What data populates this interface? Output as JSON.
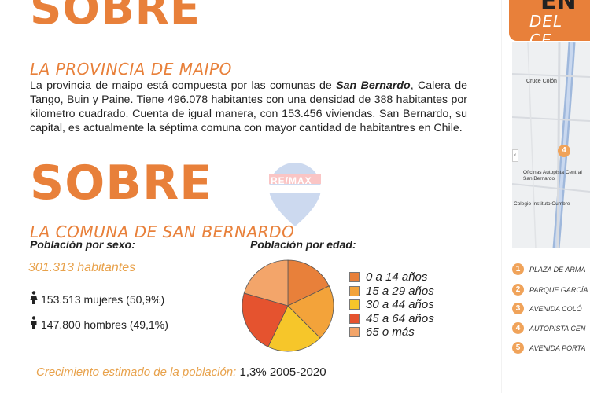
{
  "top": {
    "heading": "SOBRE",
    "subtitle": "LA PROVINCIA DE MAIPO",
    "p1": "La provincia de maipo está compuesta por las comunas de ",
    "p1_bold": "San Bernardo",
    "p2": ", Calera de Tango, Buin y Paine. Tiene 496.078 habitantes con una densidad de 388 habitantes por kilometro cuadrado. Cuenta de igual manera, con 153.456 viviendas. San Bernardo, su capital, es actualmente la séptima comuna con mayor cantidad de habitantres en Chile."
  },
  "second": {
    "heading": "SOBRE",
    "subtitle": "LA COMUNA DE SAN BERNARDO"
  },
  "sexo": {
    "header": "Población por sexo:",
    "total": "301.313 habitantes",
    "mujeres": "153.513 mujeres (50,9%)",
    "hombres": "147.800 hombres (49,1%)"
  },
  "edad": {
    "header": "Población por edad:"
  },
  "chart_data": {
    "type": "pie",
    "title": "",
    "categories": [
      "0 a 14 años",
      "15 a 29 años",
      "30 a 44 años",
      "45 a 64 años",
      "65 o más"
    ],
    "values": [
      20,
      22,
      22,
      25,
      23
    ],
    "colors": [
      "#e8803a",
      "#f3a33a",
      "#f6c62a",
      "#e5532f",
      "#f3a56a"
    ]
  },
  "growth": {
    "label": "Crecimiento estimado de la población:",
    "value": "1,3% 2005-2020"
  },
  "watermark": "RE/MAX",
  "sidebar": {
    "heading_partial": "EN",
    "subheading_partial": "DEL CE",
    "map_labels": [
      "Cruce Colón",
      "Oficinas Autopista Central | San Bernardo",
      "Colegio Instituto Cumbre"
    ],
    "list": [
      {
        "n": "1",
        "label": "PLAZA DE ARMA"
      },
      {
        "n": "2",
        "label": "PARQUE GARCÍA"
      },
      {
        "n": "3",
        "label": "AVENIDA COLÓ"
      },
      {
        "n": "4",
        "label": "AUTOPISTA CEN"
      },
      {
        "n": "5",
        "label": "AVENIDA PORTA"
      }
    ]
  }
}
